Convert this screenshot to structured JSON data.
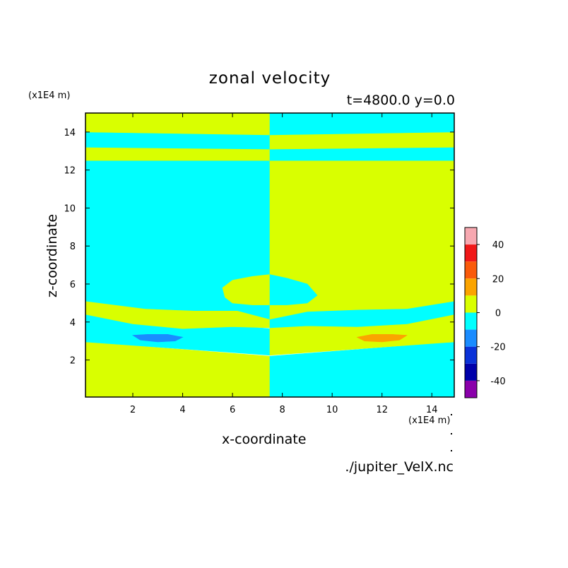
{
  "chart_data": {
    "type": "heatmap",
    "title": "zonal velocity",
    "subtitle": "t=4800.0 y=0.0",
    "xlabel": "x-coordinate",
    "ylabel": "z-coordinate",
    "x_multiplier_label": "(x1E4 m)",
    "y_multiplier_label": "(x1E4 m)",
    "source_label": "./jupiter_VelX.nc",
    "xlim": [
      0.1,
      14.9
    ],
    "ylim": [
      0.05,
      15.0
    ],
    "x_ticks": [
      "2",
      "4",
      "6",
      "8",
      "10",
      "12",
      "14"
    ],
    "x_tick_values": [
      2,
      4,
      6,
      8,
      10,
      12,
      14
    ],
    "y_ticks": [
      "2",
      "4",
      "6",
      "8",
      "10",
      "12",
      "14"
    ],
    "y_tick_values": [
      2,
      4,
      6,
      8,
      10,
      12,
      14
    ],
    "colorbar": {
      "range": [
        -50,
        50
      ],
      "tick_labels": [
        "40",
        "20",
        "0",
        "-20",
        "-40"
      ],
      "tick_values": [
        40,
        20,
        0,
        -20,
        -40
      ],
      "levels": [
        {
          "from": 40,
          "to": 50,
          "color": "#f7a8b0"
        },
        {
          "from": 30,
          "to": 40,
          "color": "#f01818"
        },
        {
          "from": 20,
          "to": 30,
          "color": "#fa5a0a"
        },
        {
          "from": 10,
          "to": 20,
          "color": "#fba400"
        },
        {
          "from": 0,
          "to": 10,
          "color": "#d9ff00"
        },
        {
          "from": -10,
          "to": 0,
          "color": "#00ffff"
        },
        {
          "from": -20,
          "to": -10,
          "color": "#1a8cff"
        },
        {
          "from": -30,
          "to": -20,
          "color": "#0a32d8"
        },
        {
          "from": -40,
          "to": -30,
          "color": "#0000aa"
        },
        {
          "from": -50,
          "to": -40,
          "color": "#8a00aa"
        }
      ]
    },
    "regions": [
      {
        "color": "#d9ff00",
        "points": [
          [
            0.1,
            0.05
          ],
          [
            7.5,
            0.05
          ],
          [
            7.5,
            2.2
          ],
          [
            0.1,
            2.95
          ]
        ]
      },
      {
        "color": "#00ffff",
        "points": [
          [
            7.5,
            0.05
          ],
          [
            14.9,
            0.05
          ],
          [
            14.9,
            2.95
          ],
          [
            7.5,
            2.2
          ]
        ]
      },
      {
        "color": "#00ffff",
        "points": [
          [
            0.1,
            2.95
          ],
          [
            7.5,
            2.25
          ],
          [
            7.5,
            3.65
          ],
          [
            0.1,
            4.4
          ]
        ]
      },
      {
        "color": "#d9ff00",
        "points": [
          [
            7.5,
            2.25
          ],
          [
            14.9,
            2.95
          ],
          [
            14.9,
            4.4
          ],
          [
            7.5,
            3.7
          ]
        ]
      },
      {
        "color": "#d9ff00",
        "points": [
          [
            0.1,
            4.4
          ],
          [
            2,
            3.9
          ],
          [
            4,
            3.65
          ],
          [
            6,
            3.75
          ],
          [
            7.5,
            3.7
          ],
          [
            7.5,
            4.15
          ],
          [
            6.2,
            4.6
          ],
          [
            4.5,
            4.6
          ],
          [
            2.5,
            4.7
          ],
          [
            0.1,
            5.1
          ]
        ]
      },
      {
        "color": "#00ffff",
        "points": [
          [
            7.5,
            3.7
          ],
          [
            9,
            3.8
          ],
          [
            11,
            3.75
          ],
          [
            13,
            3.9
          ],
          [
            14.9,
            4.4
          ],
          [
            14.9,
            5.1
          ],
          [
            13,
            4.7
          ],
          [
            11,
            4.65
          ],
          [
            9,
            4.55
          ],
          [
            7.5,
            4.15
          ]
        ]
      },
      {
        "color": "#00ffff",
        "points": [
          [
            0.1,
            5.1
          ],
          [
            2.5,
            4.7
          ],
          [
            4.5,
            4.6
          ],
          [
            6.2,
            4.6
          ],
          [
            7.5,
            4.15
          ],
          [
            7.5,
            12.5
          ],
          [
            0.1,
            12.5
          ]
        ]
      },
      {
        "color": "#d9ff00",
        "points": [
          [
            7.5,
            4.15
          ],
          [
            9,
            4.55
          ],
          [
            11,
            4.65
          ],
          [
            13,
            4.7
          ],
          [
            14.9,
            5.1
          ],
          [
            14.9,
            12.5
          ],
          [
            7.5,
            12.5
          ]
        ]
      },
      {
        "color": "#d9ff00",
        "points": [
          [
            5.7,
            5.3
          ],
          [
            6.0,
            5.0
          ],
          [
            6.8,
            4.9
          ],
          [
            7.5,
            4.9
          ],
          [
            7.5,
            6.5
          ],
          [
            6.8,
            6.4
          ],
          [
            6.0,
            6.2
          ],
          [
            5.6,
            5.8
          ]
        ]
      },
      {
        "color": "#00ffff",
        "points": [
          [
            7.5,
            4.9
          ],
          [
            8.2,
            4.9
          ],
          [
            9.0,
            5.0
          ],
          [
            9.4,
            5.4
          ],
          [
            9.0,
            6.0
          ],
          [
            8.2,
            6.3
          ],
          [
            7.5,
            6.5
          ]
        ]
      },
      {
        "color": "#d9ff00",
        "points": [
          [
            0.1,
            12.5
          ],
          [
            7.5,
            12.5
          ],
          [
            7.5,
            13.1
          ],
          [
            0.1,
            13.2
          ]
        ]
      },
      {
        "color": "#00ffff",
        "points": [
          [
            7.5,
            12.5
          ],
          [
            14.9,
            12.5
          ],
          [
            14.9,
            13.2
          ],
          [
            7.5,
            13.1
          ]
        ]
      },
      {
        "color": "#00ffff",
        "points": [
          [
            0.1,
            13.2
          ],
          [
            7.5,
            13.1
          ],
          [
            7.5,
            13.85
          ],
          [
            0.1,
            14.0
          ]
        ]
      },
      {
        "color": "#d9ff00",
        "points": [
          [
            7.5,
            13.1
          ],
          [
            14.9,
            13.2
          ],
          [
            14.9,
            14.0
          ],
          [
            7.5,
            13.85
          ]
        ]
      },
      {
        "color": "#d9ff00",
        "points": [
          [
            0.1,
            14.0
          ],
          [
            7.5,
            13.85
          ],
          [
            7.5,
            15.0
          ],
          [
            0.1,
            15.0
          ]
        ]
      },
      {
        "color": "#00ffff",
        "points": [
          [
            7.5,
            13.85
          ],
          [
            14.9,
            14.0
          ],
          [
            14.9,
            15.0
          ],
          [
            7.5,
            15.0
          ]
        ]
      },
      {
        "color": "#1a8cff",
        "points": [
          [
            2.0,
            3.3
          ],
          [
            2.6,
            3.35
          ],
          [
            3.4,
            3.35
          ],
          [
            4.0,
            3.2
          ],
          [
            3.7,
            3.0
          ],
          [
            3.0,
            2.95
          ],
          [
            2.3,
            3.05
          ]
        ]
      },
      {
        "color": "#fba400",
        "points": [
          [
            11.0,
            3.2
          ],
          [
            11.6,
            3.35
          ],
          [
            12.4,
            3.35
          ],
          [
            13.0,
            3.3
          ],
          [
            12.7,
            3.05
          ],
          [
            12.0,
            2.95
          ],
          [
            11.3,
            3.0
          ]
        ]
      }
    ]
  }
}
